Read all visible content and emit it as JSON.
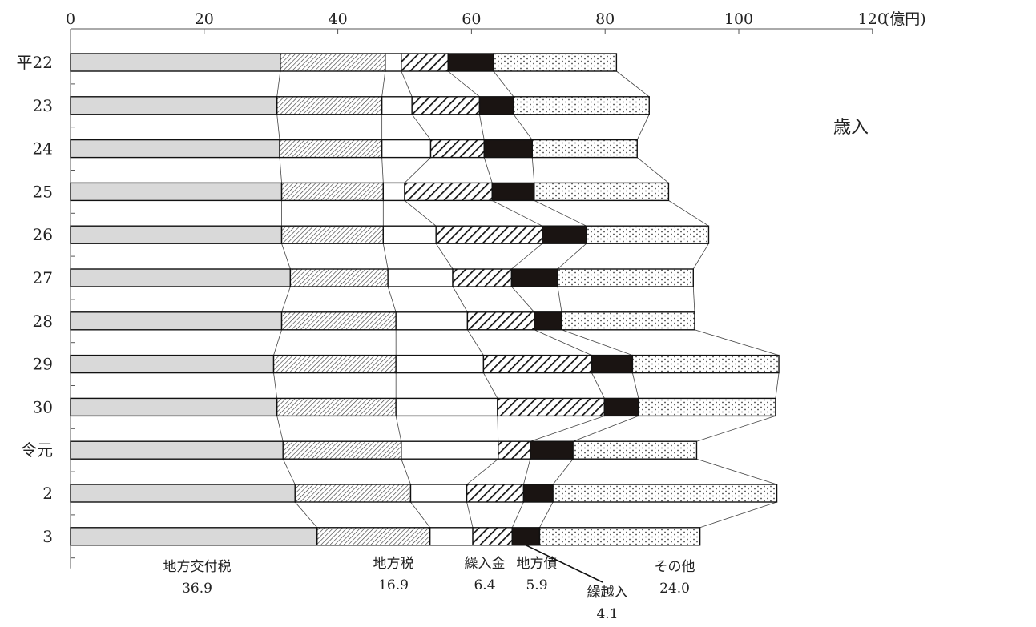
{
  "chart_data": {
    "type": "bar",
    "stacked": true,
    "orientation": "horizontal",
    "title": "歳入",
    "unit": "(億円)",
    "xlim": [
      0,
      120
    ],
    "xticks": [
      0,
      20,
      40,
      60,
      80,
      100,
      120
    ],
    "xtick_labels": [
      "0",
      "20",
      "40",
      "60",
      "80",
      "100",
      "120"
    ],
    "categories": [
      "平22",
      "23",
      "24",
      "25",
      "26",
      "27",
      "28",
      "29",
      "30",
      "令元",
      "2",
      "3"
    ],
    "series": [
      {
        "name": "地方交付税",
        "color": "#d9d9d9",
        "pattern": "solid-gray",
        "values": [
          31.4,
          30.9,
          31.3,
          31.6,
          31.6,
          32.9,
          31.6,
          30.4,
          30.9,
          31.8,
          33.6,
          36.9
        ]
      },
      {
        "name": "地方税",
        "color": "#ffffff",
        "pattern": "fine-diagonal",
        "values": [
          15.7,
          15.7,
          15.3,
          15.2,
          15.2,
          14.6,
          17.1,
          18.3,
          17.8,
          17.7,
          17.3,
          16.9
        ]
      },
      {
        "name": "繰入金",
        "color": "#ffffff",
        "pattern": "white",
        "values": [
          2.4,
          4.5,
          7.3,
          3.2,
          7.9,
          9.7,
          10.7,
          13.1,
          15.2,
          14.5,
          8.4,
          6.4
        ]
      },
      {
        "name": "地方債",
        "color": "#ffffff",
        "pattern": "bold-diagonal",
        "values": [
          7.0,
          10.1,
          8.0,
          13.1,
          15.9,
          8.8,
          10.0,
          16.2,
          16.0,
          4.8,
          8.5,
          5.9
        ]
      },
      {
        "name": "繰越入",
        "color": "#1a1412",
        "pattern": "black",
        "values": [
          6.8,
          5.1,
          7.2,
          6.3,
          6.6,
          6.9,
          4.1,
          6.1,
          5.1,
          6.4,
          4.4,
          4.1
        ]
      },
      {
        "name": "その他",
        "color": "#ffffff",
        "pattern": "dots",
        "values": [
          18.4,
          20.3,
          15.7,
          20.1,
          18.3,
          20.3,
          19.9,
          21.9,
          20.5,
          18.5,
          33.5,
          24.0
        ]
      }
    ],
    "annotations": [
      {
        "name": "地方交付税",
        "value": "36.9"
      },
      {
        "name": "地方税",
        "value": "16.9"
      },
      {
        "name": "繰入金",
        "value": "6.4"
      },
      {
        "name": "地方債",
        "value": "5.9"
      },
      {
        "name": "繰越入",
        "value": "4.1"
      },
      {
        "name": "その他",
        "value": "24.0"
      }
    ],
    "grid": false,
    "legend": "none"
  }
}
